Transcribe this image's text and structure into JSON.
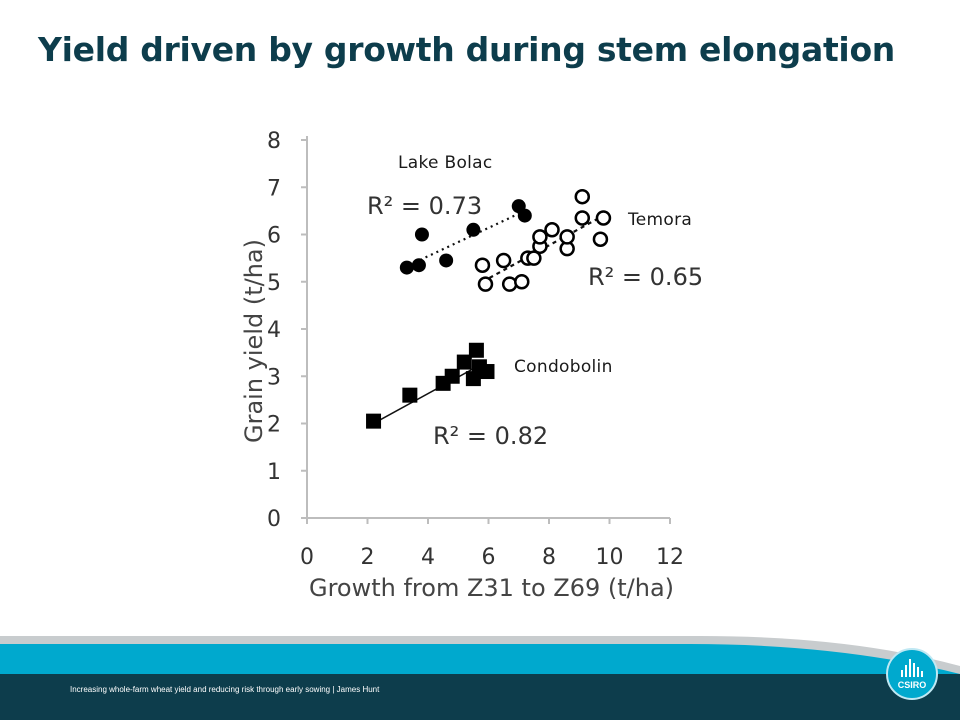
{
  "slide": {
    "title": "Yield driven by growth during stem elongation",
    "footer_text": "Increasing whole-farm wheat yield and reducing risk through early sowing | James Hunt",
    "logo_text": "CSIRO",
    "accent_color": "#00a9ce",
    "dark_color": "#0d3d4c"
  },
  "chart_data": {
    "type": "scatter",
    "title": "",
    "xlabel": "Growth from Z31 to Z69 (t/ha)",
    "ylabel": "Grain yield (t/ha)",
    "xlim": [
      0,
      12
    ],
    "ylim": [
      0,
      8
    ],
    "xticks": [
      "0",
      "2",
      "4",
      "6",
      "8",
      "10",
      "12"
    ],
    "yticks": [
      "0",
      "1",
      "2",
      "3",
      "4",
      "5",
      "6",
      "7",
      "8"
    ],
    "grid": false,
    "series": [
      {
        "name": "Lake Bolac",
        "marker": "filled-circle",
        "r2": "R² = 0.73",
        "trend": "dotted",
        "trend_x": [
          3.2,
          7.2
        ],
        "trend_y": [
          5.3,
          6.5
        ],
        "points": [
          {
            "x": 3.3,
            "y": 5.3
          },
          {
            "x": 3.7,
            "y": 5.35
          },
          {
            "x": 3.8,
            "y": 6.0
          },
          {
            "x": 4.6,
            "y": 5.45
          },
          {
            "x": 5.5,
            "y": 6.1
          },
          {
            "x": 7.0,
            "y": 6.6
          },
          {
            "x": 7.2,
            "y": 6.4
          }
        ]
      },
      {
        "name": "Temora",
        "marker": "open-circle",
        "r2": "R² = 0.65",
        "trend": "dashed",
        "trend_x": [
          5.8,
          9.8
        ],
        "trend_y": [
          5.0,
          6.4
        ],
        "points": [
          {
            "x": 5.8,
            "y": 5.35
          },
          {
            "x": 5.9,
            "y": 4.95
          },
          {
            "x": 6.5,
            "y": 5.45
          },
          {
            "x": 6.7,
            "y": 4.95
          },
          {
            "x": 7.1,
            "y": 5.0
          },
          {
            "x": 7.3,
            "y": 5.5
          },
          {
            "x": 7.5,
            "y": 5.5
          },
          {
            "x": 7.7,
            "y": 5.75
          },
          {
            "x": 7.7,
            "y": 5.95
          },
          {
            "x": 8.1,
            "y": 6.1
          },
          {
            "x": 8.6,
            "y": 5.7
          },
          {
            "x": 8.6,
            "y": 5.95
          },
          {
            "x": 9.1,
            "y": 6.35
          },
          {
            "x": 9.1,
            "y": 6.8
          },
          {
            "x": 9.7,
            "y": 5.9
          },
          {
            "x": 9.8,
            "y": 6.35
          }
        ]
      },
      {
        "name": "Condobolin",
        "marker": "filled-square",
        "r2": "R² = 0.82",
        "trend": "solid",
        "trend_x": [
          2.2,
          5.9
        ],
        "trend_y": [
          2.0,
          3.3
        ],
        "points": [
          {
            "x": 2.2,
            "y": 2.05
          },
          {
            "x": 3.4,
            "y": 2.6
          },
          {
            "x": 4.5,
            "y": 2.85
          },
          {
            "x": 4.8,
            "y": 3.0
          },
          {
            "x": 5.2,
            "y": 3.3
          },
          {
            "x": 5.5,
            "y": 2.95
          },
          {
            "x": 5.6,
            "y": 3.55
          },
          {
            "x": 5.7,
            "y": 3.2
          },
          {
            "x": 5.95,
            "y": 3.1
          }
        ]
      }
    ]
  }
}
